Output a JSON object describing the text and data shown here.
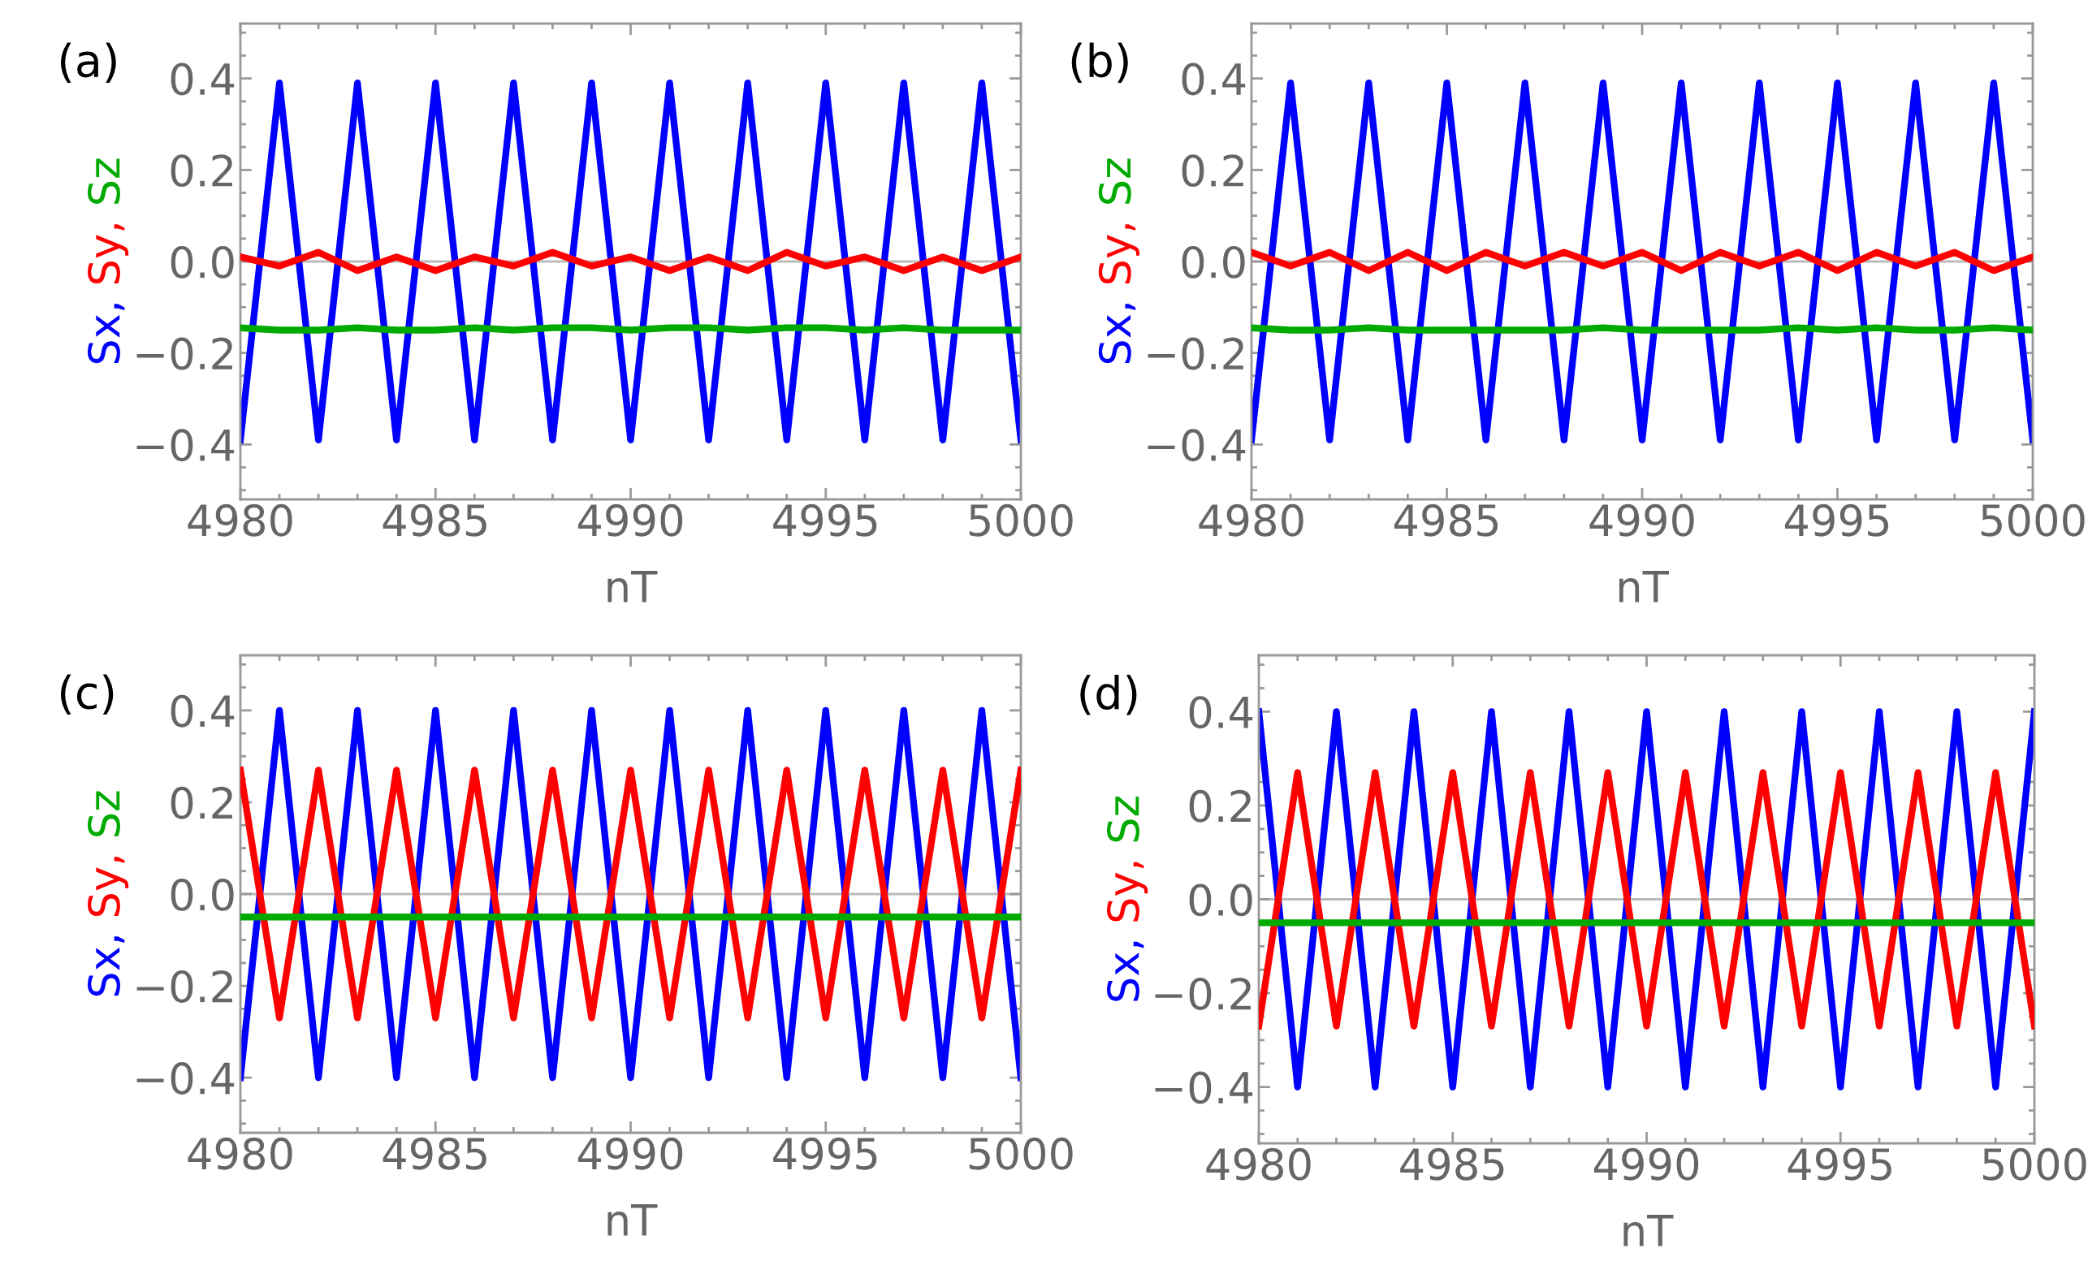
{
  "chart_data": [
    {
      "type": "line",
      "title": "(a)",
      "xlabel": "nT",
      "ylabel": "Sx, Sy, Sz",
      "x": [
        4980,
        4981,
        4982,
        4983,
        4984,
        4985,
        4986,
        4987,
        4988,
        4989,
        4990,
        4991,
        4992,
        4993,
        4994,
        4995,
        4996,
        4997,
        4998,
        4999,
        5000
      ],
      "xlim": [
        4980,
        5000
      ],
      "xticks": [
        4980,
        4985,
        4990,
        4995,
        5000
      ],
      "ylim": [
        -0.52,
        0.52
      ],
      "yticks": [
        {
          "value": -0.4,
          "label": "−0.4"
        },
        {
          "value": -0.2,
          "label": "−0.2"
        },
        {
          "value": 0,
          "label": "0.0"
        },
        {
          "value": 0.2,
          "label": "0.2"
        },
        {
          "value": 0.4,
          "label": "0.4"
        }
      ],
      "legend": false,
      "grid": false,
      "ref_lines": [
        {
          "axis": "y",
          "value": 0,
          "color": "#bbbbbb"
        }
      ],
      "series": [
        {
          "color": "#0000ff",
          "values": [
            -0.39,
            0.39,
            -0.39,
            0.39,
            -0.39,
            0.39,
            -0.39,
            0.39,
            -0.39,
            0.39,
            -0.39,
            0.39,
            -0.39,
            0.39,
            -0.39,
            0.39,
            -0.39,
            0.39,
            -0.39,
            0.39,
            -0.39
          ]
        },
        {
          "color": "#ff0000",
          "values": [
            0.01,
            -0.01,
            0.02,
            -0.02,
            0.01,
            -0.02,
            0.01,
            -0.01,
            0.02,
            -0.01,
            0.01,
            -0.02,
            0.01,
            -0.02,
            0.02,
            -0.01,
            0.01,
            -0.02,
            0.01,
            -0.02,
            0.01
          ]
        },
        {
          "color": "#00aa00",
          "values": [
            -0.145,
            -0.15,
            -0.15,
            -0.145,
            -0.15,
            -0.15,
            -0.145,
            -0.15,
            -0.145,
            -0.145,
            -0.15,
            -0.145,
            -0.145,
            -0.15,
            -0.145,
            -0.145,
            -0.15,
            -0.145,
            -0.15,
            -0.15,
            -0.15
          ]
        }
      ]
    },
    {
      "type": "line",
      "title": "(b)",
      "xlabel": "nT",
      "ylabel": "Sx, Sy, Sz",
      "x": [
        4980,
        4981,
        4982,
        4983,
        4984,
        4985,
        4986,
        4987,
        4988,
        4989,
        4990,
        4991,
        4992,
        4993,
        4994,
        4995,
        4996,
        4997,
        4998,
        4999,
        5000
      ],
      "xlim": [
        4980,
        5000
      ],
      "xticks": [
        4980,
        4985,
        4990,
        4995,
        5000
      ],
      "ylim": [
        -0.52,
        0.52
      ],
      "yticks": [
        {
          "value": -0.4,
          "label": "−0.4"
        },
        {
          "value": -0.2,
          "label": "−0.2"
        },
        {
          "value": 0,
          "label": "0.0"
        },
        {
          "value": 0.2,
          "label": "0.2"
        },
        {
          "value": 0.4,
          "label": "0.4"
        }
      ],
      "legend": false,
      "grid": false,
      "ref_lines": [
        {
          "axis": "y",
          "value": 0,
          "color": "#bbbbbb"
        }
      ],
      "series": [
        {
          "color": "#0000ff",
          "values": [
            -0.39,
            0.39,
            -0.39,
            0.39,
            -0.39,
            0.39,
            -0.39,
            0.39,
            -0.39,
            0.39,
            -0.39,
            0.39,
            -0.39,
            0.39,
            -0.39,
            0.39,
            -0.39,
            0.39,
            -0.39,
            0.39,
            -0.39
          ]
        },
        {
          "color": "#ff0000",
          "values": [
            0.02,
            -0.01,
            0.02,
            -0.02,
            0.02,
            -0.02,
            0.02,
            -0.01,
            0.02,
            -0.01,
            0.02,
            -0.02,
            0.02,
            -0.01,
            0.02,
            -0.02,
            0.02,
            -0.01,
            0.02,
            -0.02,
            0.01
          ]
        },
        {
          "color": "#00aa00",
          "values": [
            -0.145,
            -0.15,
            -0.15,
            -0.145,
            -0.15,
            -0.15,
            -0.15,
            -0.15,
            -0.15,
            -0.145,
            -0.15,
            -0.15,
            -0.15,
            -0.15,
            -0.145,
            -0.15,
            -0.145,
            -0.15,
            -0.15,
            -0.145,
            -0.15
          ]
        }
      ]
    },
    {
      "type": "line",
      "title": "(c)",
      "xlabel": "nT",
      "ylabel": "Sx, Sy, Sz",
      "x": [
        4980,
        4981,
        4982,
        4983,
        4984,
        4985,
        4986,
        4987,
        4988,
        4989,
        4990,
        4991,
        4992,
        4993,
        4994,
        4995,
        4996,
        4997,
        4998,
        4999,
        5000
      ],
      "xlim": [
        4980,
        5000
      ],
      "xticks": [
        4980,
        4985,
        4990,
        4995,
        5000
      ],
      "ylim": [
        -0.52,
        0.52
      ],
      "yticks": [
        {
          "value": -0.4,
          "label": "−0.4"
        },
        {
          "value": -0.2,
          "label": "−0.2"
        },
        {
          "value": 0,
          "label": "0.0"
        },
        {
          "value": 0.2,
          "label": "0.2"
        },
        {
          "value": 0.4,
          "label": "0.4"
        }
      ],
      "legend": false,
      "grid": false,
      "ref_lines": [
        {
          "axis": "y",
          "value": 0,
          "color": "#bbbbbb"
        }
      ],
      "series": [
        {
          "color": "#0000ff",
          "values": [
            -0.4,
            0.4,
            -0.4,
            0.4,
            -0.4,
            0.4,
            -0.4,
            0.4,
            -0.4,
            0.4,
            -0.4,
            0.4,
            -0.4,
            0.4,
            -0.4,
            0.4,
            -0.4,
            0.4,
            -0.4,
            0.4,
            -0.4
          ]
        },
        {
          "color": "#ff0000",
          "values": [
            0.27,
            -0.27,
            0.27,
            -0.27,
            0.27,
            -0.27,
            0.27,
            -0.27,
            0.27,
            -0.27,
            0.27,
            -0.27,
            0.27,
            -0.27,
            0.27,
            -0.27,
            0.27,
            -0.27,
            0.27,
            -0.27,
            0.27
          ]
        },
        {
          "color": "#00aa00",
          "values": [
            -0.05,
            -0.05,
            -0.05,
            -0.05,
            -0.05,
            -0.05,
            -0.05,
            -0.05,
            -0.05,
            -0.05,
            -0.05,
            -0.05,
            -0.05,
            -0.05,
            -0.05,
            -0.05,
            -0.05,
            -0.05,
            -0.05,
            -0.05,
            -0.05
          ]
        }
      ]
    },
    {
      "type": "line",
      "title": "(d)",
      "xlabel": "nT",
      "ylabel": "Sx, Sy, Sz",
      "x": [
        4980,
        4981,
        4982,
        4983,
        4984,
        4985,
        4986,
        4987,
        4988,
        4989,
        4990,
        4991,
        4992,
        4993,
        4994,
        4995,
        4996,
        4997,
        4998,
        4999,
        5000
      ],
      "xlim": [
        4980,
        5000
      ],
      "xticks": [
        4980,
        4985,
        4990,
        4995,
        5000
      ],
      "ylim": [
        -0.52,
        0.52
      ],
      "yticks": [
        {
          "value": -0.4,
          "label": "−0.4"
        },
        {
          "value": -0.2,
          "label": "−0.2"
        },
        {
          "value": 0,
          "label": "0.0"
        },
        {
          "value": 0.2,
          "label": "0.2"
        },
        {
          "value": 0.4,
          "label": "0.4"
        }
      ],
      "legend": false,
      "grid": false,
      "ref_lines": [
        {
          "axis": "y",
          "value": 0,
          "color": "#bbbbbb"
        }
      ],
      "series": [
        {
          "color": "#0000ff",
          "values": [
            0.4,
            -0.4,
            0.4,
            -0.4,
            0.4,
            -0.4,
            0.4,
            -0.4,
            0.4,
            -0.4,
            0.4,
            -0.4,
            0.4,
            -0.4,
            0.4,
            -0.4,
            0.4,
            -0.4,
            0.4,
            -0.4,
            0.4
          ]
        },
        {
          "color": "#ff0000",
          "values": [
            -0.27,
            0.27,
            -0.27,
            0.27,
            -0.27,
            0.27,
            -0.27,
            0.27,
            -0.27,
            0.27,
            -0.27,
            0.27,
            -0.27,
            0.27,
            -0.27,
            0.27,
            -0.27,
            0.27,
            -0.27,
            0.27,
            -0.27
          ]
        },
        {
          "color": "#00aa00",
          "values": [
            -0.05,
            -0.05,
            -0.05,
            -0.05,
            -0.05,
            -0.05,
            -0.05,
            -0.05,
            -0.05,
            -0.05,
            -0.05,
            -0.05,
            -0.05,
            -0.05,
            -0.05,
            -0.05,
            -0.05,
            -0.05,
            -0.05,
            -0.05,
            -0.05
          ]
        }
      ]
    }
  ]
}
